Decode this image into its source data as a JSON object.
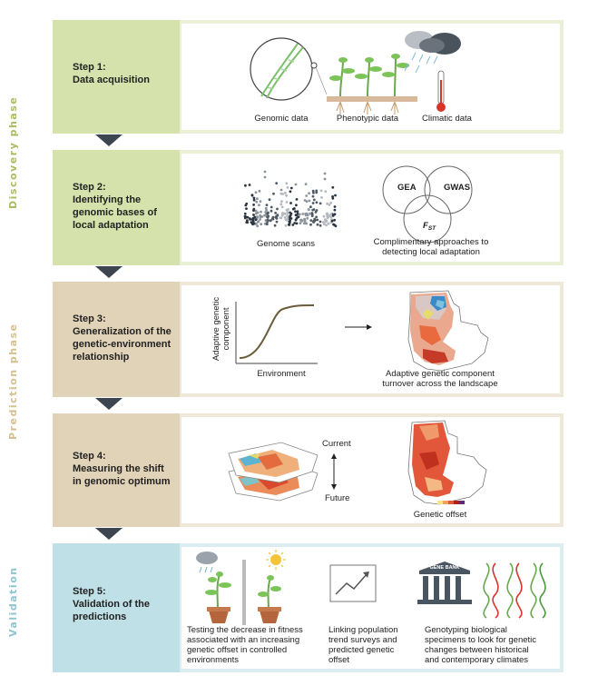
{
  "phases": {
    "discovery": "Discovery phase",
    "prediction": "Prediction phase",
    "validation": "Validation"
  },
  "steps": [
    {
      "num": "Step 1:",
      "title": "Data acquisition"
    },
    {
      "num": "Step 2:",
      "title_lines": [
        "Identifying the",
        "genomic bases of",
        "local adaptation"
      ]
    },
    {
      "num": "Step 3:",
      "title_lines": [
        "Generalization of the",
        "genetic-environment",
        "relationship"
      ]
    },
    {
      "num": "Step 4:",
      "title_lines": [
        "Measuring the shift",
        "in genomic optimum"
      ]
    },
    {
      "num": "Step 5:",
      "title_lines": [
        "Validation of the",
        "predictions"
      ]
    }
  ],
  "step1": {
    "genomic": "Genomic data",
    "phenotypic": "Phenotypic data",
    "climatic": "Climatic data"
  },
  "step2": {
    "genome_scans": "Genome scans",
    "venn": {
      "gea": "GEA",
      "gwas": "GWAS",
      "fst": "F",
      "fst_sub": "ST"
    },
    "approaches_lines": [
      "Complimentary approaches to",
      "detecting local adaptation"
    ]
  },
  "step3": {
    "ylabel_lines": [
      "Adaptive genetic",
      "component"
    ],
    "xlabel": "Environment",
    "caption_lines": [
      "Adaptive genetic component",
      "turnover across the landscape"
    ]
  },
  "step4": {
    "current": "Current",
    "future": "Future",
    "offset": "Genetic offset"
  },
  "step5": {
    "col1_lines": [
      "Testing the decrease in fitness",
      "associated with an increasing",
      "genetic offset in controlled",
      "environments"
    ],
    "col2_lines": [
      "Linking population",
      "trend surveys and",
      "predicted genetic",
      "offset"
    ],
    "col3_lines": [
      "Genotyping biological",
      "specimens to look for genetic",
      "changes between historical",
      "and contemporary climates"
    ],
    "gene_bank": "GENE BANK"
  },
  "colors": {
    "discovery": "#d5e2ac",
    "discovery_light": "#e9f0d6",
    "discovery_text": "#a8be61",
    "prediction": "#e1d3b7",
    "prediction_light": "#efe7d8",
    "prediction_text": "#d6bf8f",
    "validation": "#bfe0e6",
    "validation_light": "#dcedf1",
    "validation_text": "#8fc4d0",
    "chevron": "#3d4550"
  }
}
